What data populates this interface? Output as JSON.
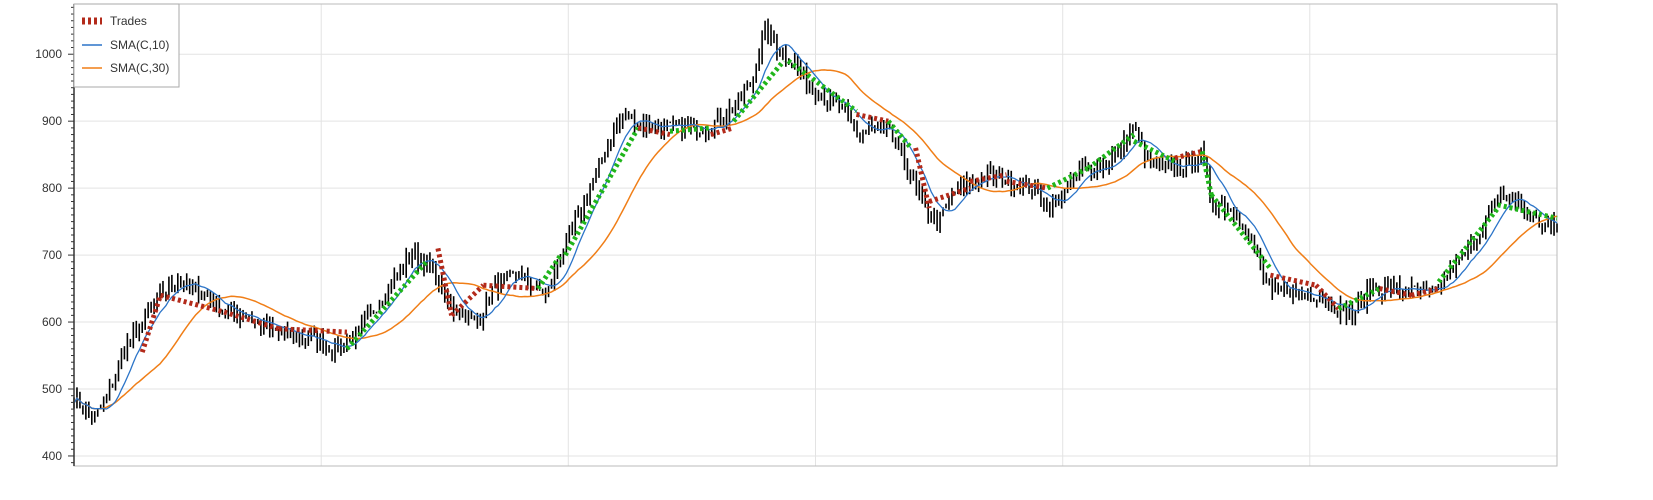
{
  "chart_data": {
    "type": "line",
    "title": "",
    "xlabel": "",
    "ylabel": "",
    "ylim": [
      385,
      1075
    ],
    "yticks": [
      400,
      500,
      600,
      700,
      800,
      900,
      1000
    ],
    "x_count": 500,
    "grid": true,
    "legend_position": "top-left",
    "legend": [
      {
        "name": "Trades",
        "color": "#b32a1a",
        "style": "dotted-red"
      },
      {
        "name": "SMA(C,10)",
        "color": "#2b74c8",
        "style": "line"
      },
      {
        "name": "SMA(C,30)",
        "color": "#f07e17",
        "style": "line"
      }
    ],
    "price_color": "#000000",
    "win_trade_color": "#1fb51a",
    "loss_trade_color": "#b32a1a",
    "price_anchors": [
      [
        0,
        490
      ],
      [
        8,
        455
      ],
      [
        14,
        480
      ],
      [
        22,
        560
      ],
      [
        30,
        600
      ],
      [
        38,
        640
      ],
      [
        45,
        665
      ],
      [
        52,
        650
      ],
      [
        58,
        640
      ],
      [
        66,
        615
      ],
      [
        75,
        610
      ],
      [
        85,
        590
      ],
      [
        95,
        580
      ],
      [
        105,
        575
      ],
      [
        115,
        560
      ],
      [
        125,
        585
      ],
      [
        132,
        620
      ],
      [
        140,
        660
      ],
      [
        148,
        700
      ],
      [
        155,
        690
      ],
      [
        160,
        660
      ],
      [
        166,
        620
      ],
      [
        172,
        610
      ],
      [
        178,
        600
      ],
      [
        184,
        650
      ],
      [
        195,
        670
      ],
      [
        200,
        660
      ],
      [
        208,
        640
      ],
      [
        214,
        700
      ],
      [
        222,
        760
      ],
      [
        230,
        820
      ],
      [
        236,
        880
      ],
      [
        242,
        910
      ],
      [
        250,
        895
      ],
      [
        262,
        890
      ],
      [
        276,
        890
      ],
      [
        285,
        905
      ],
      [
        292,
        930
      ],
      [
        298,
        960
      ],
      [
        304,
        1040
      ],
      [
        310,
        1005
      ],
      [
        316,
        990
      ],
      [
        322,
        960
      ],
      [
        330,
        935
      ],
      [
        338,
        915
      ],
      [
        344,
        880
      ],
      [
        352,
        890
      ],
      [
        358,
        880
      ],
      [
        364,
        850
      ],
      [
        370,
        800
      ],
      [
        375,
        760
      ],
      [
        380,
        750
      ],
      [
        386,
        790
      ],
      [
        394,
        810
      ],
      [
        402,
        820
      ],
      [
        412,
        810
      ],
      [
        420,
        800
      ],
      [
        430,
        770
      ],
      [
        436,
        800
      ],
      [
        444,
        830
      ],
      [
        452,
        830
      ],
      [
        460,
        860
      ],
      [
        466,
        890
      ],
      [
        472,
        840
      ],
      [
        480,
        830
      ],
      [
        484,
        825
      ],
      [
        490,
        840
      ],
      [
        496,
        850
      ],
      [
        500,
        780
      ]
    ],
    "price_anchors_2": [
      [
        500,
        780
      ],
      [
        505,
        775
      ],
      [
        512,
        760
      ],
      [
        520,
        700
      ],
      [
        526,
        640
      ],
      [
        534,
        650
      ],
      [
        542,
        640
      ],
      [
        548,
        640
      ],
      [
        556,
        620
      ],
      [
        562,
        610
      ],
      [
        570,
        650
      ],
      [
        580,
        650
      ],
      [
        590,
        645
      ],
      [
        598,
        640
      ],
      [
        606,
        680
      ],
      [
        614,
        710
      ],
      [
        622,
        760
      ],
      [
        628,
        790
      ],
      [
        634,
        780
      ],
      [
        640,
        760
      ],
      [
        646,
        745
      ],
      [
        652,
        740
      ]
    ],
    "trades": [
      {
        "x1": 30,
        "y1": 555,
        "x2": 38,
        "y2": 640,
        "result": "loss"
      },
      {
        "x1": 38,
        "y1": 640,
        "x2": 66,
        "y2": 615,
        "result": "loss"
      },
      {
        "x1": 66,
        "y1": 615,
        "x2": 90,
        "y2": 590,
        "result": "loss"
      },
      {
        "x1": 90,
        "y1": 590,
        "x2": 120,
        "y2": 585,
        "result": "loss"
      },
      {
        "x1": 120,
        "y1": 560,
        "x2": 155,
        "y2": 690,
        "result": "win"
      },
      {
        "x1": 160,
        "y1": 710,
        "x2": 166,
        "y2": 610,
        "result": "loss"
      },
      {
        "x1": 166,
        "y1": 610,
        "x2": 180,
        "y2": 655,
        "result": "loss"
      },
      {
        "x1": 180,
        "y1": 655,
        "x2": 204,
        "y2": 650,
        "result": "loss"
      },
      {
        "x1": 204,
        "y1": 650,
        "x2": 214,
        "y2": 700,
        "result": "win"
      },
      {
        "x1": 216,
        "y1": 700,
        "x2": 248,
        "y2": 890,
        "result": "win"
      },
      {
        "x1": 248,
        "y1": 890,
        "x2": 262,
        "y2": 880,
        "result": "loss"
      },
      {
        "x1": 262,
        "y1": 885,
        "x2": 280,
        "y2": 890,
        "result": "win"
      },
      {
        "x1": 280,
        "y1": 880,
        "x2": 290,
        "y2": 890,
        "result": "loss"
      },
      {
        "x1": 290,
        "y1": 900,
        "x2": 312,
        "y2": 990,
        "result": "win"
      },
      {
        "x1": 314,
        "y1": 990,
        "x2": 344,
        "y2": 915,
        "result": "win"
      },
      {
        "x1": 344,
        "y1": 910,
        "x2": 358,
        "y2": 900,
        "result": "loss"
      },
      {
        "x1": 358,
        "y1": 900,
        "x2": 368,
        "y2": 860,
        "result": "win"
      },
      {
        "x1": 370,
        "y1": 860,
        "x2": 376,
        "y2": 770,
        "result": "loss"
      },
      {
        "x1": 376,
        "y1": 780,
        "x2": 394,
        "y2": 800,
        "result": "loss"
      },
      {
        "x1": 394,
        "y1": 810,
        "x2": 410,
        "y2": 820,
        "result": "loss"
      },
      {
        "x1": 410,
        "y1": 810,
        "x2": 428,
        "y2": 800,
        "result": "loss"
      },
      {
        "x1": 428,
        "y1": 800,
        "x2": 446,
        "y2": 830,
        "result": "win"
      },
      {
        "x1": 446,
        "y1": 830,
        "x2": 466,
        "y2": 880,
        "result": "win"
      },
      {
        "x1": 466,
        "y1": 870,
        "x2": 484,
        "y2": 840,
        "result": "win"
      },
      {
        "x1": 484,
        "y1": 845,
        "x2": 496,
        "y2": 855,
        "result": "loss"
      },
      {
        "x1": 496,
        "y1": 855,
        "x2": 500,
        "y2": 790,
        "result": "win"
      },
      {
        "x1": 500,
        "y1": 790,
        "x2": 526,
        "y2": 680,
        "result": "win"
      },
      {
        "x1": 526,
        "y1": 670,
        "x2": 546,
        "y2": 655,
        "result": "loss"
      },
      {
        "x1": 546,
        "y1": 655,
        "x2": 556,
        "y2": 620,
        "result": "loss"
      },
      {
        "x1": 556,
        "y1": 620,
        "x2": 574,
        "y2": 650,
        "result": "win"
      },
      {
        "x1": 574,
        "y1": 650,
        "x2": 588,
        "y2": 640,
        "result": "loss"
      },
      {
        "x1": 588,
        "y1": 640,
        "x2": 600,
        "y2": 650,
        "result": "loss"
      },
      {
        "x1": 600,
        "y1": 660,
        "x2": 626,
        "y2": 770,
        "result": "win"
      },
      {
        "x1": 626,
        "y1": 775,
        "x2": 652,
        "y2": 755,
        "result": "win"
      }
    ]
  }
}
